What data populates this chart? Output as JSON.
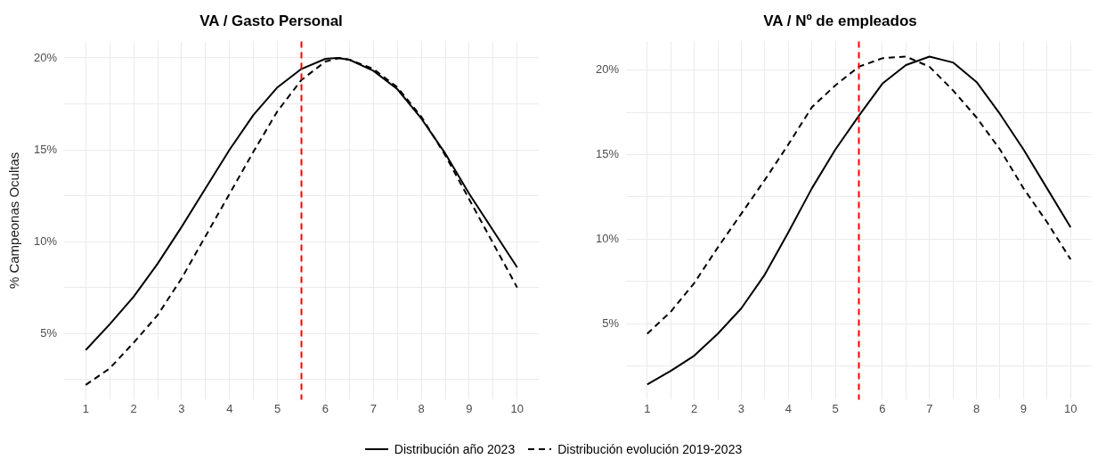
{
  "chart_data": [
    {
      "type": "line",
      "title": "VA / Gasto Personal",
      "ylabel": "% Campeonas Ocultas",
      "legend": "bottom",
      "grid": true,
      "marker": "none",
      "xlim": [
        0.55,
        10.45
      ],
      "xticks": [
        1,
        {
          "value": 1.5,
          "label": null
        },
        2,
        {
          "value": 2.5,
          "label": null
        },
        3,
        {
          "value": 3.5,
          "label": null
        },
        4,
        {
          "value": 4.5,
          "label": null
        },
        5,
        {
          "value": 5.5,
          "label": null
        },
        6,
        {
          "value": 6.5,
          "label": null
        },
        7,
        {
          "value": 7.5,
          "label": null
        },
        8,
        {
          "value": 8.5,
          "label": null
        },
        9,
        {
          "value": 9.5,
          "label": null
        },
        10
      ],
      "ylim": [
        1.4,
        20.9
      ],
      "yticks": [
        {
          "value": 2.5,
          "label": null
        },
        {
          "value": 5,
          "label": "5%"
        },
        {
          "value": 7.5,
          "label": null
        },
        {
          "value": 10,
          "label": "10%"
        },
        {
          "value": 12.5,
          "label": null
        },
        {
          "value": 15,
          "label": "15%"
        },
        {
          "value": 17.5,
          "label": null
        },
        {
          "value": 20,
          "label": "20%"
        }
      ],
      "ref_lines": [
        {
          "axis": "x",
          "value": 5.5,
          "color": "#ff0000",
          "line_style": "dashed"
        }
      ],
      "series": [
        {
          "name": "Distribución año 2023",
          "color": "#000000",
          "line_style": "solid",
          "x": [
            1,
            1.5,
            2,
            2.5,
            3,
            3.5,
            4,
            4.5,
            5,
            5.5,
            6,
            6.25,
            6.5,
            7,
            7.5,
            8,
            8.5,
            9,
            9.5,
            10
          ],
          "values": [
            4.1,
            5.5,
            7.0,
            8.8,
            10.8,
            12.9,
            15.0,
            16.9,
            18.4,
            19.4,
            19.95,
            20.0,
            19.9,
            19.3,
            18.3,
            16.7,
            14.8,
            12.6,
            10.6,
            8.6
          ]
        },
        {
          "name": "Distribución evolución 2019-2023",
          "color": "#000000",
          "line_style": "dashed",
          "x": [
            1,
            1.5,
            2,
            2.5,
            3,
            3.5,
            4,
            4.5,
            5,
            5.5,
            6,
            6.3,
            6.5,
            7,
            7.5,
            8,
            8.5,
            9,
            9.5,
            10
          ],
          "values": [
            2.2,
            3.1,
            4.5,
            6.0,
            8.0,
            10.3,
            12.6,
            14.9,
            17.1,
            18.8,
            19.8,
            20.0,
            19.9,
            19.4,
            18.4,
            16.8,
            14.7,
            12.3,
            9.9,
            7.5
          ]
        }
      ]
    },
    {
      "type": "line",
      "title": "VA / Nº de empleados",
      "grid": true,
      "marker": "none",
      "xlim": [
        0.55,
        10.45
      ],
      "xticks": [
        1,
        {
          "value": 1.5,
          "label": null
        },
        2,
        {
          "value": 2.5,
          "label": null
        },
        3,
        {
          "value": 3.5,
          "label": null
        },
        4,
        {
          "value": 4.5,
          "label": null
        },
        5,
        {
          "value": 5.5,
          "label": null
        },
        6,
        {
          "value": 6.5,
          "label": null
        },
        7,
        {
          "value": 7.5,
          "label": null
        },
        8,
        {
          "value": 8.5,
          "label": null
        },
        9,
        {
          "value": 9.5,
          "label": null
        },
        10
      ],
      "ylim": [
        0.5,
        21.7
      ],
      "yticks": [
        {
          "value": 2.5,
          "label": null
        },
        {
          "value": 5,
          "label": "5%"
        },
        {
          "value": 7.5,
          "label": null
        },
        {
          "value": 10,
          "label": "10%"
        },
        {
          "value": 12.5,
          "label": null
        },
        {
          "value": 15,
          "label": "15%"
        },
        {
          "value": 17.5,
          "label": null
        },
        {
          "value": 20,
          "label": "20%"
        }
      ],
      "ref_lines": [
        {
          "axis": "x",
          "value": 5.5,
          "color": "#ff0000",
          "line_style": "dashed"
        }
      ],
      "series": [
        {
          "color": "#000000",
          "line_style": "solid",
          "x": [
            1,
            1.5,
            2,
            2.5,
            3,
            3.5,
            4,
            4.5,
            5,
            5.5,
            6,
            6.5,
            7,
            7.5,
            8,
            8.5,
            9,
            9.5,
            10
          ],
          "values": [
            1.4,
            2.2,
            3.1,
            4.4,
            5.9,
            7.9,
            10.4,
            13.0,
            15.3,
            17.3,
            19.2,
            20.3,
            20.8,
            20.45,
            19.3,
            17.4,
            15.3,
            13.0,
            10.7
          ]
        },
        {
          "color": "#000000",
          "line_style": "dashed",
          "x": [
            1,
            1.5,
            2,
            2.5,
            3,
            3.5,
            4,
            4.5,
            5,
            5.5,
            6,
            6.5,
            7,
            7.5,
            8,
            8.5,
            9,
            9.5,
            10
          ],
          "values": [
            4.4,
            5.7,
            7.4,
            9.5,
            11.5,
            13.5,
            15.6,
            17.8,
            19.1,
            20.2,
            20.7,
            20.8,
            20.2,
            18.8,
            17.2,
            15.3,
            13.0,
            11.0,
            8.8
          ]
        }
      ]
    }
  ]
}
